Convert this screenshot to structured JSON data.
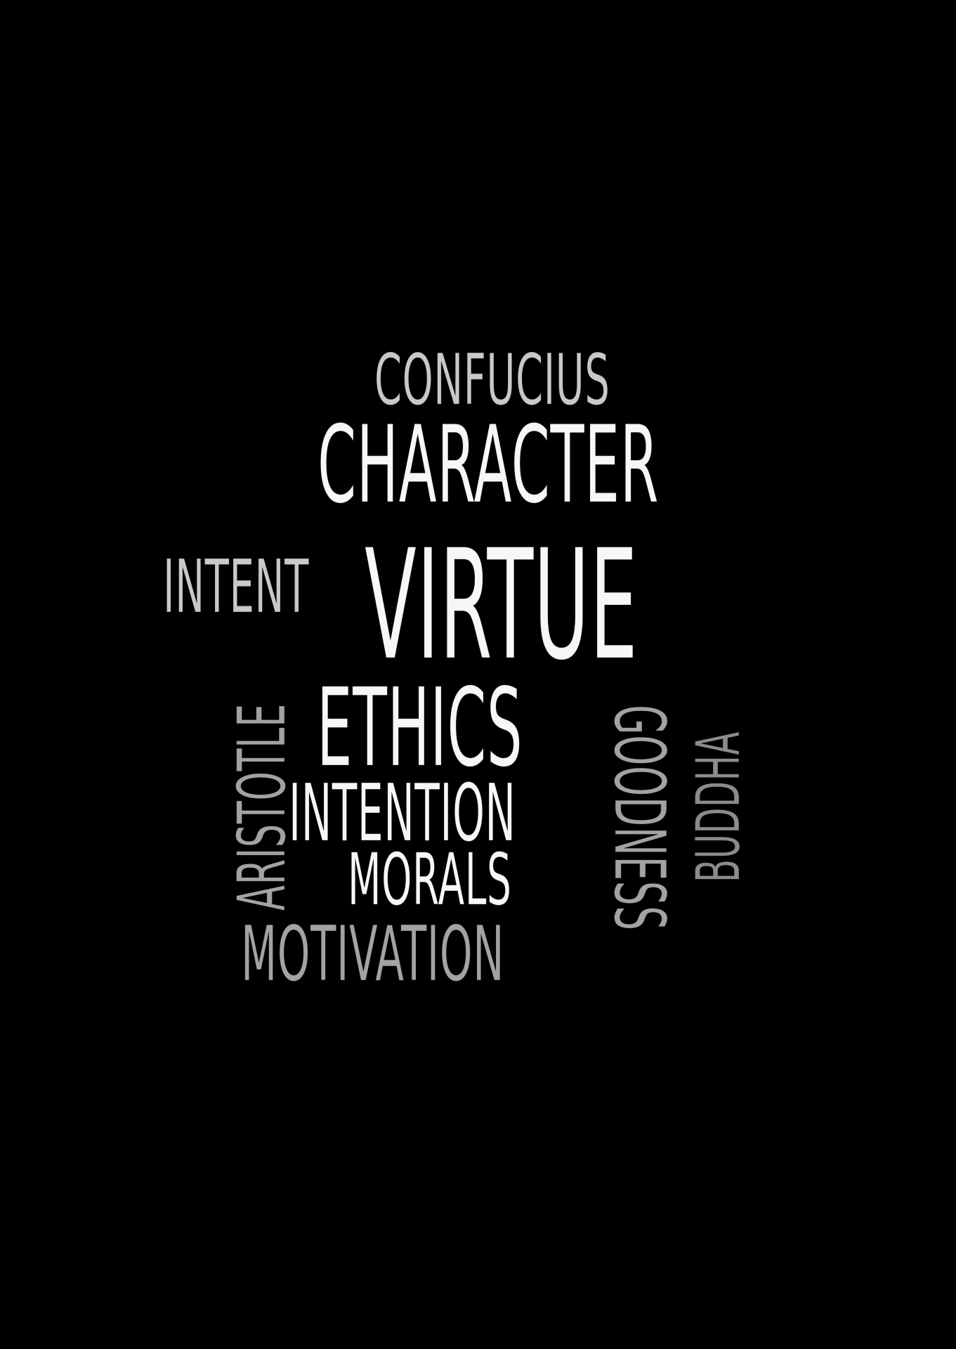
{
  "canvas": {
    "background": "#000000"
  },
  "words": {
    "confucius": "CONFUCIUS",
    "character": "CHARACTER",
    "intent": "INTENT",
    "virtue": "VIRTUE",
    "ethics": "ETHICS",
    "intention": "INTENTION",
    "morals": "MORALS",
    "motivation": "MOTIVATION",
    "aristotle": "ARISTOTLE",
    "goodness": "GOODNESS",
    "buddha": "BUDDHA"
  },
  "colors": {
    "white": "#f7f7f7",
    "light_gray": "#c9c9c9",
    "mid_gray": "#a3a3a3",
    "dim_gray": "#8c8c8c"
  }
}
